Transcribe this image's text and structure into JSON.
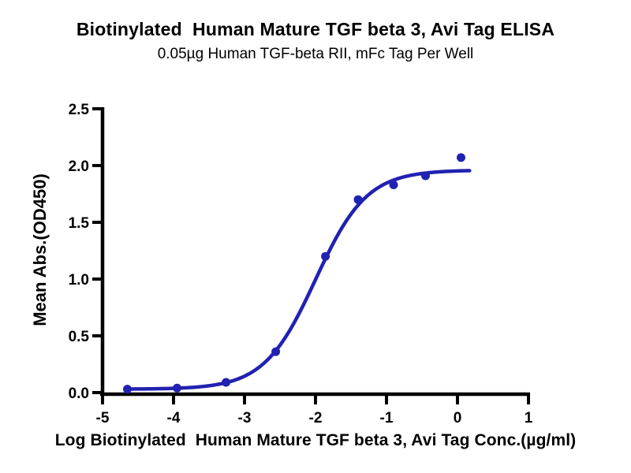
{
  "chart_data": {
    "type": "scatter",
    "title": "Biotinylated  Human Mature TGF beta 3, Avi Tag ELISA",
    "subtitle": "0.05µg Human TGF-beta RII, mFc Tag Per Well",
    "xlabel": "Log Biotinylated  Human Mature TGF beta 3, Avi Tag Conc.(µg/ml)",
    "ylabel": "Mean Abs.(OD450)",
    "xlim": [
      -5,
      1
    ],
    "ylim": [
      0,
      2.5
    ],
    "xtick_values": [
      -5,
      -4,
      -3,
      -2,
      -1,
      0,
      1
    ],
    "xtick_labels": [
      "-5",
      "-4",
      "-3",
      "-2",
      "-1",
      "0",
      "1"
    ],
    "ytick_values": [
      0,
      0.5,
      1,
      1.5,
      2,
      2.5
    ],
    "ytick_labels": [
      "0.0",
      "0.5",
      "1.0",
      "1.5",
      "2.0",
      "2.5"
    ],
    "grid": false,
    "legend_position": "none",
    "points": [
      {
        "x": -4.65,
        "y": 0.03
      },
      {
        "x": -3.95,
        "y": 0.04
      },
      {
        "x": -3.26,
        "y": 0.09
      },
      {
        "x": -2.56,
        "y": 0.36
      },
      {
        "x": -1.86,
        "y": 1.2
      },
      {
        "x": -1.4,
        "y": 1.7
      },
      {
        "x": -0.9,
        "y": 1.83
      },
      {
        "x": -0.45,
        "y": 1.91
      },
      {
        "x": 0.05,
        "y": 2.07
      }
    ],
    "fit_curve": {
      "model": "4PL",
      "bottom": 0.03,
      "top": 1.96,
      "log_ec50": -2.0,
      "hill_slope": 1.2,
      "x_start": -4.68,
      "x_end": 0.17
    },
    "colors": {
      "series": "#2121B2",
      "axis": "#000000",
      "text": "#000000",
      "background": "#FFFFFF"
    }
  }
}
